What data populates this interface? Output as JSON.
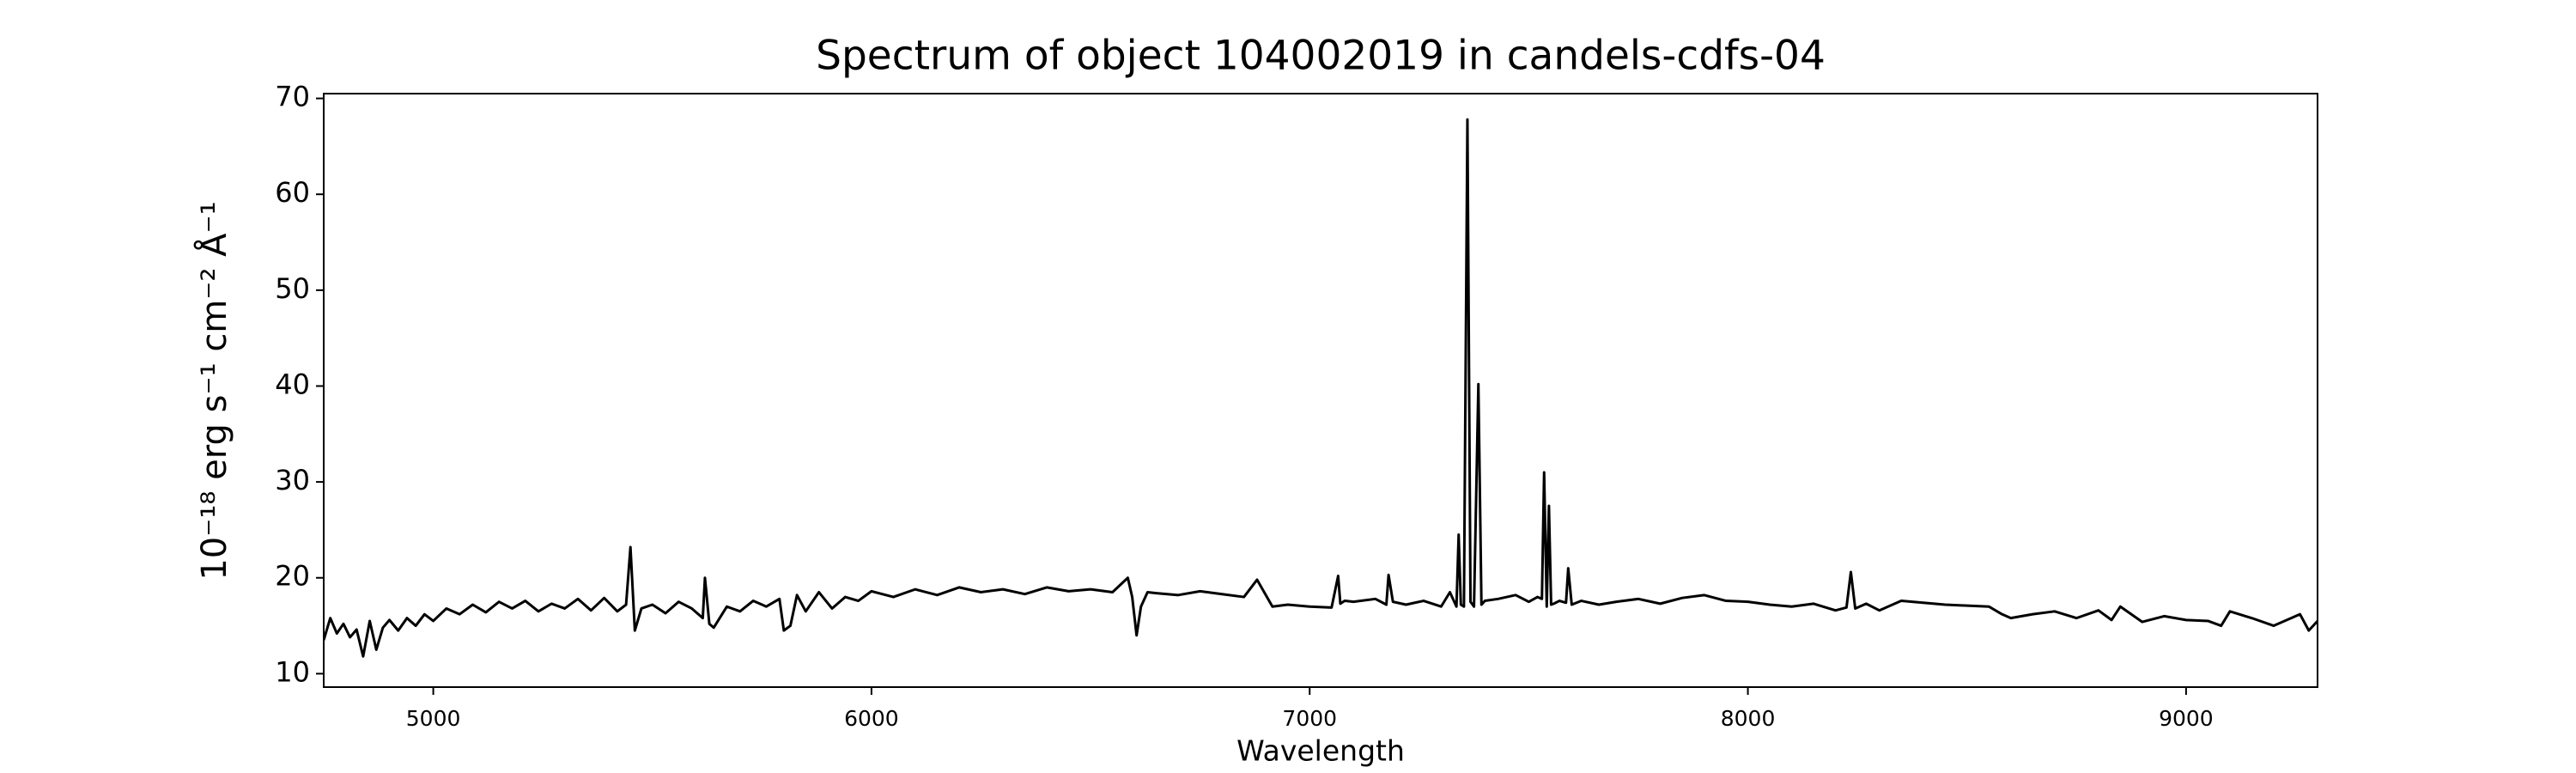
{
  "chart_data": {
    "type": "line",
    "title": "Spectrum of object 104002019 in candels-cdfs-04",
    "x_label": "Wavelength",
    "y_label": "10⁻¹⁸ erg s⁻¹ cm⁻² Å⁻¹",
    "xlim": [
      4750,
      9300
    ],
    "xticks": [
      5000,
      6000,
      7000,
      8000,
      9000
    ],
    "ylim": [
      8.6,
      70.5
    ],
    "yticks": [
      10,
      20,
      30,
      40,
      50,
      60,
      70
    ],
    "grid": false,
    "series": [
      {
        "color": "#000000",
        "x": [
          4750,
          4765,
          4780,
          4795,
          4810,
          4825,
          4840,
          4855,
          4870,
          4885,
          4900,
          4920,
          4940,
          4960,
          4980,
          5000,
          5030,
          5060,
          5090,
          5120,
          5150,
          5180,
          5210,
          5240,
          5270,
          5300,
          5330,
          5360,
          5390,
          5420,
          5440,
          5450,
          5460,
          5475,
          5500,
          5530,
          5560,
          5590,
          5615,
          5620,
          5630,
          5640,
          5670,
          5700,
          5730,
          5760,
          5790,
          5800,
          5815,
          5830,
          5850,
          5880,
          5910,
          5940,
          5970,
          6000,
          6050,
          6100,
          6150,
          6200,
          6250,
          6300,
          6350,
          6400,
          6450,
          6500,
          6550,
          6585,
          6595,
          6605,
          6615,
          6630,
          6650,
          6700,
          6750,
          6800,
          6850,
          6880,
          6900,
          6915,
          6950,
          7000,
          7050,
          7065,
          7070,
          7080,
          7100,
          7150,
          7175,
          7180,
          7190,
          7220,
          7260,
          7300,
          7320,
          7335,
          7340,
          7345,
          7352,
          7360,
          7367,
          7375,
          7385,
          7392,
          7400,
          7430,
          7470,
          7500,
          7520,
          7530,
          7535,
          7541,
          7546,
          7551,
          7557,
          7570,
          7585,
          7590,
          7598,
          7620,
          7660,
          7700,
          7750,
          7800,
          7850,
          7900,
          7950,
          8000,
          8050,
          8100,
          8150,
          8200,
          8225,
          8235,
          8245,
          8270,
          8300,
          8350,
          8400,
          8450,
          8500,
          8550,
          8580,
          8600,
          8650,
          8700,
          8750,
          8800,
          8830,
          8850,
          8900,
          8950,
          9000,
          9050,
          9080,
          9100,
          9150,
          9200,
          9240,
          9260,
          9280,
          9300
        ],
        "values": [
          13.5,
          15.8,
          14.2,
          15.2,
          13.8,
          14.6,
          11.8,
          15.5,
          12.5,
          14.8,
          15.6,
          14.5,
          15.8,
          15.0,
          16.2,
          15.5,
          16.8,
          16.2,
          17.2,
          16.4,
          17.5,
          16.8,
          17.6,
          16.5,
          17.3,
          16.8,
          17.8,
          16.6,
          17.9,
          16.5,
          17.2,
          23.2,
          14.5,
          16.8,
          17.2,
          16.3,
          17.5,
          16.8,
          15.8,
          20.0,
          15.2,
          14.8,
          17.0,
          16.5,
          17.6,
          17.0,
          17.8,
          14.5,
          15.0,
          18.2,
          16.5,
          18.5,
          16.8,
          18.0,
          17.6,
          18.6,
          18.0,
          18.8,
          18.2,
          19.0,
          18.5,
          18.8,
          18.3,
          19.0,
          18.6,
          18.8,
          18.5,
          20.0,
          18.0,
          14.0,
          17.0,
          18.5,
          18.4,
          18.2,
          18.6,
          18.3,
          18.0,
          19.8,
          18.2,
          17.0,
          17.2,
          17.0,
          16.9,
          20.2,
          17.3,
          17.6,
          17.5,
          17.8,
          17.2,
          20.3,
          17.5,
          17.2,
          17.6,
          17.0,
          18.5,
          17.0,
          24.5,
          17.2,
          17.0,
          67.8,
          17.5,
          17.0,
          40.2,
          17.2,
          17.6,
          17.8,
          18.2,
          17.5,
          18.0,
          17.8,
          31.0,
          17.0,
          27.5,
          17.2,
          17.3,
          17.6,
          17.4,
          21.0,
          17.2,
          17.6,
          17.2,
          17.5,
          17.8,
          17.3,
          17.9,
          18.2,
          17.6,
          17.5,
          17.2,
          17.0,
          17.3,
          16.6,
          16.9,
          20.6,
          16.8,
          17.3,
          16.6,
          17.6,
          17.4,
          17.2,
          17.1,
          17.0,
          16.2,
          15.8,
          16.2,
          16.5,
          15.8,
          16.6,
          15.6,
          17.0,
          15.4,
          16.0,
          15.6,
          15.5,
          15.0,
          16.5,
          15.8,
          15.0,
          15.8,
          16.2,
          14.5,
          15.5
        ]
      }
    ]
  }
}
